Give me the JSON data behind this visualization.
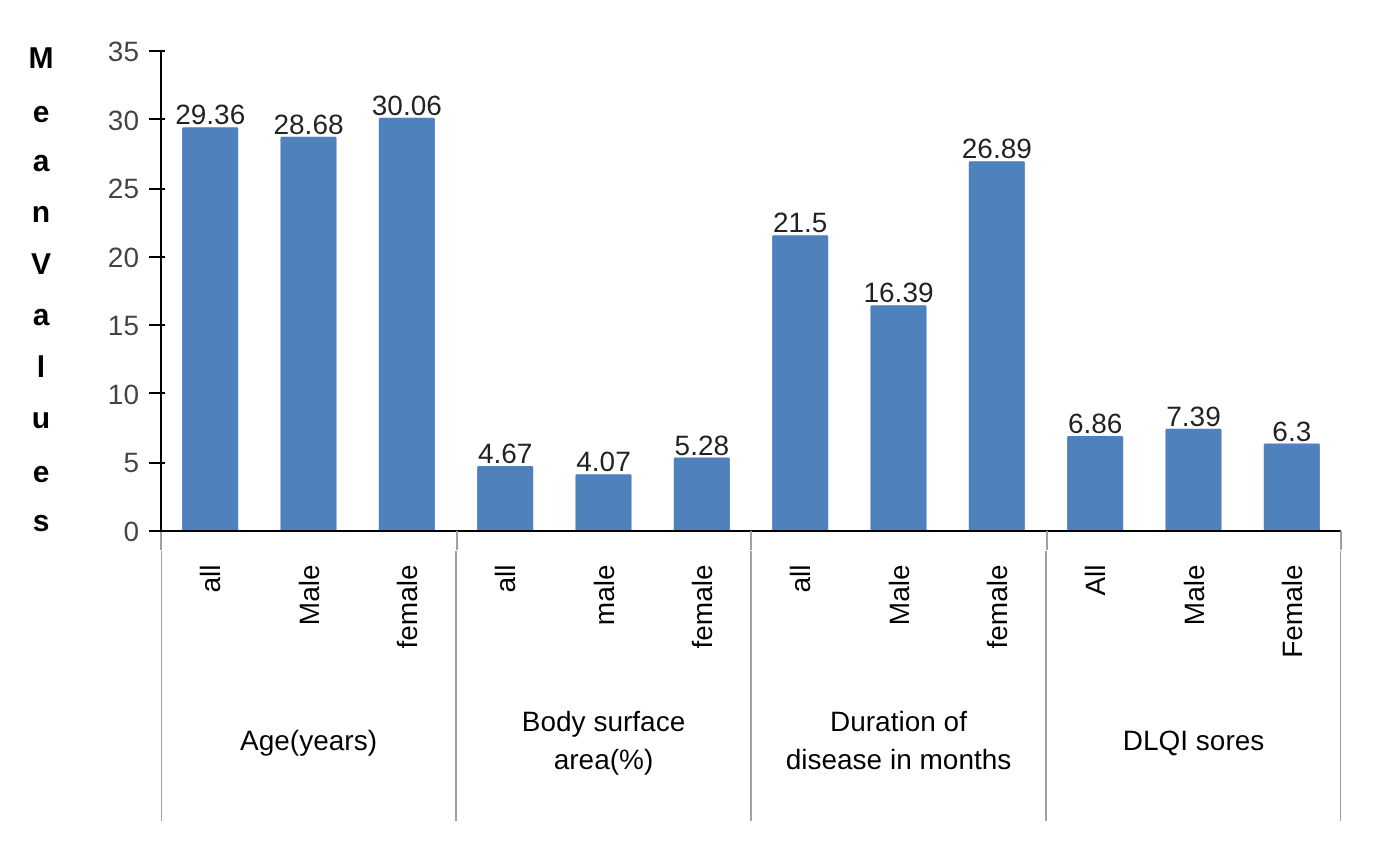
{
  "chart_data": {
    "type": "bar",
    "ylabel": "Mean Values",
    "categories": [
      "all",
      "Male",
      "female",
      "all",
      "male",
      "female",
      "all",
      "Male",
      "female",
      "All",
      "Male",
      "Female"
    ],
    "values": [
      29.36,
      28.68,
      30.06,
      4.67,
      4.07,
      5.28,
      21.5,
      16.39,
      26.89,
      6.86,
      7.39,
      6.3
    ],
    "color": "#4f81bd",
    "data_labels": true,
    "annotations": [
      "Age(years)",
      "Body surface\narea(%)",
      "Duration of\ndisease in months",
      "DLQI sores"
    ],
    "ylim": [
      0,
      35
    ],
    "yticks": [
      0,
      5,
      10,
      15,
      20,
      25,
      30,
      35
    ],
    "grid": false
  }
}
